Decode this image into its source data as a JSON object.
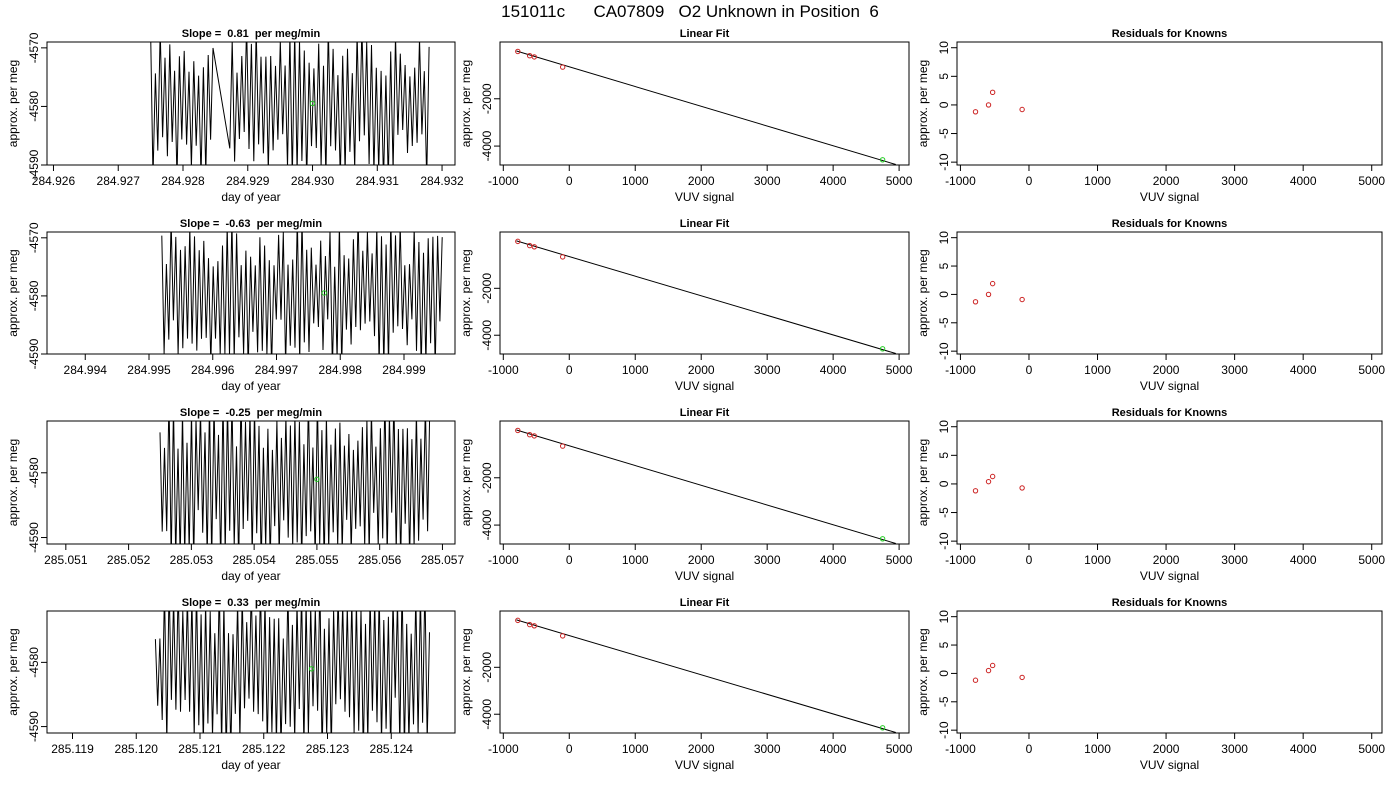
{
  "figure_title": "151011c      CA07809   O2 Unknown in Position  6",
  "colors": {
    "trace": "#000000",
    "fit_line": "#000000",
    "known_points": "#cc2222",
    "unknown_point": "#22cc22",
    "frame": "#000000"
  },
  "chart_data": [
    {
      "type": "line",
      "row": 1,
      "title": "Slope =  0.81  per meg/min",
      "xlabel": "day of year",
      "ylabel": "approx. per meg",
      "xlim": [
        284.9259,
        284.9322
      ],
      "ylim": [
        -4590,
        -4569
      ],
      "xticks": [
        "284.926",
        "284.927",
        "284.928",
        "284.929",
        "284.930",
        "284.931",
        "284.932"
      ],
      "yticks": [
        "-4570",
        "-4580",
        "-4590"
      ],
      "trace": {
        "x_start": 284.9275,
        "x_end": 284.9318,
        "center": -4579.5,
        "amplitude": 10,
        "cycles": 58,
        "gap_start": 284.9285,
        "gap_end": 284.9287
      },
      "mean_point": {
        "x": 284.93,
        "y": -4579.5
      }
    },
    {
      "type": "scatter",
      "row": 1,
      "title": "Linear Fit",
      "xlabel": "VUV signal",
      "ylabel": "approx. per meg",
      "xlim": [
        -1050,
        5150
      ],
      "ylim": [
        -4800,
        400
      ],
      "xticks": [
        "-1000",
        "0",
        "1000",
        "2000",
        "3000",
        "4000",
        "5000"
      ],
      "yticks": [
        "-2000",
        "-4000"
      ],
      "knowns": [
        {
          "x": -780,
          "y": 0
        },
        {
          "x": -600,
          "y": -180
        },
        {
          "x": -530,
          "y": -230
        },
        {
          "x": -100,
          "y": -660
        }
      ],
      "unknown": {
        "x": 4750,
        "y": -4580
      },
      "fit": {
        "x0": -800,
        "y0": 20,
        "x1": 4950,
        "y1": -4780
      }
    },
    {
      "type": "scatter",
      "row": 1,
      "title": "Residuals for Knowns",
      "xlabel": "VUV signal",
      "ylabel": "approx. per meg",
      "xlim": [
        -1050,
        5150
      ],
      "ylim": [
        -10.5,
        11
      ],
      "xticks": [
        "-1000",
        "0",
        "1000",
        "2000",
        "3000",
        "4000",
        "5000"
      ],
      "yticks": [
        "10",
        "5",
        "0",
        "-5",
        "-10"
      ],
      "residuals": [
        {
          "x": -780,
          "y": -1.2
        },
        {
          "x": -590,
          "y": 0
        },
        {
          "x": -530,
          "y": 2.2
        },
        {
          "x": -100,
          "y": -0.8
        }
      ]
    },
    {
      "type": "line",
      "row": 2,
      "title": "Slope =  -0.63  per meg/min",
      "xlabel": "day of year",
      "ylabel": "approx. per meg",
      "xlim": [
        284.9934,
        284.9998
      ],
      "ylim": [
        -4590,
        -4569
      ],
      "xticks": [
        "284.994",
        "284.995",
        "284.996",
        "284.997",
        "284.998",
        "284.999"
      ],
      "yticks": [
        "-4570",
        "-4580",
        "-4590"
      ],
      "trace": {
        "x_start": 284.9952,
        "x_end": 284.9996,
        "center": -4579.5,
        "amplitude": 10,
        "cycles": 60
      },
      "mean_point": {
        "x": 284.99775,
        "y": -4579.5
      }
    },
    {
      "type": "scatter",
      "row": 2,
      "title": "Linear Fit",
      "xlabel": "VUV signal",
      "ylabel": "approx. per meg",
      "xlim": [
        -1050,
        5150
      ],
      "ylim": [
        -4800,
        400
      ],
      "xticks": [
        "-1000",
        "0",
        "1000",
        "2000",
        "3000",
        "4000",
        "5000"
      ],
      "yticks": [
        "-2000",
        "-4000"
      ],
      "knowns": [
        {
          "x": -780,
          "y": 0
        },
        {
          "x": -600,
          "y": -180
        },
        {
          "x": -530,
          "y": -230
        },
        {
          "x": -100,
          "y": -660
        }
      ],
      "unknown": {
        "x": 4750,
        "y": -4580
      },
      "fit": {
        "x0": -800,
        "y0": 20,
        "x1": 4950,
        "y1": -4780
      }
    },
    {
      "type": "scatter",
      "row": 2,
      "title": "Residuals for Knowns",
      "xlabel": "VUV signal",
      "ylabel": "approx. per meg",
      "xlim": [
        -1050,
        5150
      ],
      "ylim": [
        -10.5,
        11
      ],
      "xticks": [
        "-1000",
        "0",
        "1000",
        "2000",
        "3000",
        "4000",
        "5000"
      ],
      "yticks": [
        "10",
        "5",
        "0",
        "-5",
        "-10"
      ],
      "residuals": [
        {
          "x": -780,
          "y": -1.3
        },
        {
          "x": -590,
          "y": 0
        },
        {
          "x": -530,
          "y": 1.9
        },
        {
          "x": -100,
          "y": -0.9
        }
      ]
    },
    {
      "type": "line",
      "row": 3,
      "title": "Slope =  -0.25  per meg/min",
      "xlabel": "day of year",
      "ylabel": "approx. per meg",
      "xlim": [
        285.0507,
        285.0572
      ],
      "ylim": [
        -4591,
        -4572
      ],
      "xticks": [
        "285.051",
        "285.052",
        "285.053",
        "285.054",
        "285.055",
        "285.056",
        "285.057"
      ],
      "yticks": [
        "-4580",
        "-4590"
      ],
      "trace": {
        "x_start": 285.0525,
        "x_end": 285.0568,
        "center": -4581,
        "amplitude": 10,
        "cycles": 60
      },
      "mean_point": {
        "x": 285.055,
        "y": -4581
      }
    },
    {
      "type": "scatter",
      "row": 3,
      "title": "Linear Fit",
      "xlabel": "VUV signal",
      "ylabel": "approx. per meg",
      "xlim": [
        -1050,
        5150
      ],
      "ylim": [
        -4800,
        400
      ],
      "xticks": [
        "-1000",
        "0",
        "1000",
        "2000",
        "3000",
        "4000",
        "5000"
      ],
      "yticks": [
        "-2000",
        "-4000"
      ],
      "knowns": [
        {
          "x": -780,
          "y": 0
        },
        {
          "x": -600,
          "y": -180
        },
        {
          "x": -530,
          "y": -230
        },
        {
          "x": -100,
          "y": -660
        }
      ],
      "unknown": {
        "x": 4750,
        "y": -4580
      },
      "fit": {
        "x0": -800,
        "y0": 20,
        "x1": 4950,
        "y1": -4780
      }
    },
    {
      "type": "scatter",
      "row": 3,
      "title": "Residuals for Knowns",
      "xlabel": "VUV signal",
      "ylabel": "approx. per meg",
      "xlim": [
        -1050,
        5150
      ],
      "ylim": [
        -10.5,
        11
      ],
      "xticks": [
        "-1000",
        "0",
        "1000",
        "2000",
        "3000",
        "4000",
        "5000"
      ],
      "yticks": [
        "10",
        "5",
        "0",
        "-5",
        "-10"
      ],
      "residuals": [
        {
          "x": -780,
          "y": -1.2
        },
        {
          "x": -590,
          "y": 0.4
        },
        {
          "x": -530,
          "y": 1.3
        },
        {
          "x": -100,
          "y": -0.7
        }
      ]
    },
    {
      "type": "line",
      "row": 4,
      "title": "Slope =  0.33  per meg/min",
      "xlabel": "day of year",
      "ylabel": "approx. per meg",
      "xlim": [
        285.1186,
        285.125
      ],
      "ylim": [
        -4591,
        -4572
      ],
      "xticks": [
        "285.119",
        "285.120",
        "285.121",
        "285.122",
        "285.123",
        "285.124"
      ],
      "yticks": [
        "-4580",
        "-4590"
      ],
      "trace": {
        "x_start": 285.1203,
        "x_end": 285.1246,
        "center": -4581,
        "amplitude": 10,
        "cycles": 60
      },
      "mean_point": {
        "x": 285.12275,
        "y": -4581
      }
    },
    {
      "type": "scatter",
      "row": 4,
      "title": "Linear Fit",
      "xlabel": "VUV signal",
      "ylabel": "approx. per meg",
      "xlim": [
        -1050,
        5150
      ],
      "ylim": [
        -4800,
        400
      ],
      "xticks": [
        "-1000",
        "0",
        "1000",
        "2000",
        "3000",
        "4000",
        "5000"
      ],
      "yticks": [
        "-2000",
        "-4000"
      ],
      "knowns": [
        {
          "x": -780,
          "y": 0
        },
        {
          "x": -600,
          "y": -180
        },
        {
          "x": -530,
          "y": -230
        },
        {
          "x": -100,
          "y": -660
        }
      ],
      "unknown": {
        "x": 4750,
        "y": -4580
      },
      "fit": {
        "x0": -800,
        "y0": 20,
        "x1": 4950,
        "y1": -4780
      }
    },
    {
      "type": "scatter",
      "row": 4,
      "title": "Residuals for Knowns",
      "xlabel": "VUV signal",
      "ylabel": "approx. per meg",
      "xlim": [
        -1050,
        5150
      ],
      "ylim": [
        -10.5,
        11
      ],
      "xticks": [
        "-1000",
        "0",
        "1000",
        "2000",
        "3000",
        "4000",
        "5000"
      ],
      "yticks": [
        "10",
        "5",
        "0",
        "-5",
        "-10"
      ],
      "residuals": [
        {
          "x": -780,
          "y": -1.2
        },
        {
          "x": -590,
          "y": 0.5
        },
        {
          "x": -530,
          "y": 1.4
        },
        {
          "x": -100,
          "y": -0.7
        }
      ]
    }
  ]
}
